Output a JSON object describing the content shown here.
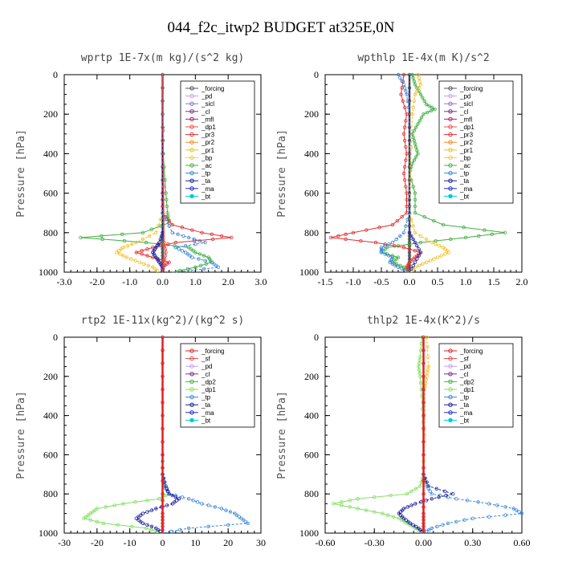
{
  "figure_title": "044_f2c_itwp2  BUDGET at325E,0N",
  "colors": {
    "forcing": "#555555",
    "pd": "#c8a0e0",
    "sicl": "#9a70c8",
    "cl": "#7a2a9a",
    "mfl": "#b0206a",
    "dp1": "#e85050",
    "pr3": "#e53030",
    "pr2": "#ee8a20",
    "pr1": "#f0c020",
    "bp": "#e8d040",
    "ac": "#40b040",
    "tp": "#3a86d8",
    "ta": "#1a1aa0",
    "ma": "#2030c0",
    "bt": "#00c8e0",
    "sf": "#e04848",
    "dp2": "#3cb83c",
    "dp1g": "#80e060",
    "forcing_r": "#e02020"
  },
  "chart_data": [
    {
      "type": "line",
      "title": "wprtp  1E-7x(m kg)/(s^2 kg)",
      "ylabel": "Pressure [hPa]",
      "xlim": [
        -3,
        3
      ],
      "xticks": [
        "-3.0",
        "-2.0",
        "-1.0",
        "0.0",
        "1.0",
        "2.0",
        "3.0"
      ],
      "ylim": [
        0,
        1000
      ],
      "yticks": [
        "0",
        "200",
        "400",
        "600",
        "800",
        "1000"
      ],
      "legend": [
        "_forcing",
        "_pd",
        "_sicl",
        "_cl",
        "_mfl",
        "_dp1",
        "_pr3",
        "_pr2",
        "_pr1",
        "_bp",
        "_ac",
        "_tp",
        "_ta",
        "_ma",
        "_bt"
      ],
      "series": [
        {
          "key": "forcing",
          "y": [
            0,
            200,
            400,
            600,
            700,
            800,
            850,
            900,
            950,
            1000
          ],
          "x": [
            0,
            0,
            0,
            0,
            0,
            0,
            0,
            0,
            0,
            0
          ]
        },
        {
          "key": "ac",
          "y": [
            0,
            200,
            400,
            600,
            700,
            750,
            800,
            825,
            850,
            875,
            900,
            925,
            950,
            975,
            1000
          ],
          "x": [
            0,
            0,
            0.02,
            0.1,
            0.15,
            0.2,
            -0.6,
            -2.5,
            -0.5,
            0.8,
            1.0,
            1.4,
            1.5,
            1.0,
            0.3
          ]
        },
        {
          "key": "pr3",
          "y": [
            0,
            600,
            700,
            760,
            800,
            825,
            850,
            875,
            900,
            925,
            950,
            975,
            1000
          ],
          "x": [
            0,
            0,
            0,
            0.3,
            1.2,
            2.1,
            0.4,
            -0.3,
            -0.8,
            -0.3,
            0.2,
            0.0,
            0.0
          ]
        },
        {
          "key": "pr1",
          "y": [
            0,
            700,
            800,
            850,
            875,
            900,
            925,
            950,
            975,
            1000
          ],
          "x": [
            0,
            0,
            -0.2,
            -0.8,
            -1.2,
            -1.4,
            -1.1,
            -0.7,
            -0.3,
            -0.1
          ]
        },
        {
          "key": "tp",
          "y": [
            0,
            700,
            800,
            825,
            850,
            875,
            900,
            925,
            950,
            975,
            1000
          ],
          "x": [
            0,
            0,
            0.3,
            0.8,
            1.3,
            0.4,
            0.7,
            0.9,
            1.5,
            1.7,
            0.4
          ]
        },
        {
          "key": "ta",
          "y": [
            0,
            800,
            850,
            875,
            900,
            925,
            950,
            975,
            1000
          ],
          "x": [
            0,
            0,
            -0.1,
            -0.2,
            -0.3,
            -0.2,
            -0.1,
            0,
            0
          ]
        },
        {
          "key": "dp1",
          "y": [
            0,
            850,
            900,
            950,
            1000
          ],
          "x": [
            0,
            0.05,
            0.1,
            0.05,
            0
          ]
        }
      ]
    },
    {
      "type": "line",
      "title": "wpthlp  1E-4x(m K)/s^2",
      "ylabel": "Pressure [hPa]",
      "xlim": [
        -1.5,
        2.0
      ],
      "xticks": [
        "-1.5",
        "-1.0",
        "-0.5",
        "0.0",
        "0.5",
        "1.0",
        "1.5",
        "2.0"
      ],
      "ylim": [
        0,
        1000
      ],
      "yticks": [
        "0",
        "200",
        "400",
        "600",
        "800",
        "1000"
      ],
      "legend": [
        "_forcing",
        "_pd",
        "_sicl",
        "_cl",
        "_mfl",
        "_dp1",
        "_pr3",
        "_pr2",
        "_pr1",
        "_bp",
        "_ac",
        "_tp",
        "_ta",
        "_ma",
        "_bt"
      ],
      "series": [
        {
          "key": "forcing",
          "y": [
            0,
            200,
            400,
            600,
            700,
            800,
            850,
            900,
            950,
            1000
          ],
          "x": [
            0,
            0,
            0,
            0,
            0,
            0,
            0,
            0,
            0,
            0
          ]
        },
        {
          "key": "ac",
          "y": [
            0,
            50,
            100,
            150,
            175,
            200,
            250,
            300,
            350,
            400,
            450,
            500,
            600,
            700,
            760,
            800,
            825,
            850,
            875,
            900,
            925,
            950,
            975,
            1000
          ],
          "x": [
            0.05,
            0.1,
            0.2,
            0.3,
            0.45,
            0.25,
            0.15,
            0.05,
            0.1,
            0.15,
            0.05,
            0.0,
            0.1,
            0.1,
            0.6,
            1.7,
            1.0,
            0.2,
            -0.4,
            -0.5,
            -0.2,
            -0.3,
            -0.1,
            0.0
          ]
        },
        {
          "key": "pr3",
          "y": [
            0,
            100,
            200,
            300,
            400,
            500,
            600,
            700,
            760,
            800,
            825,
            850,
            875,
            900,
            925,
            950,
            975,
            1000
          ],
          "x": [
            -0.1,
            -0.15,
            -0.05,
            -0.1,
            -0.05,
            -0.1,
            -0.05,
            -0.05,
            -0.3,
            -1.0,
            -1.4,
            -0.6,
            -0.1,
            0.2,
            0.1,
            0.0,
            -0.05,
            0.0
          ]
        },
        {
          "key": "pr1",
          "y": [
            0,
            50,
            100,
            200,
            700,
            800,
            850,
            875,
            900,
            925,
            950,
            975,
            1000
          ],
          "x": [
            0.15,
            0.2,
            0.1,
            0.05,
            0,
            0.1,
            0.4,
            0.6,
            0.7,
            0.5,
            0.3,
            0.1,
            0.0
          ]
        },
        {
          "key": "tp",
          "y": [
            0,
            50,
            100,
            200,
            700,
            800,
            850,
            875,
            900,
            925,
            950,
            975,
            1000
          ],
          "x": [
            -0.2,
            -0.1,
            -0.05,
            0,
            0,
            -0.1,
            -0.3,
            -0.5,
            -0.5,
            -0.3,
            -0.35,
            -0.2,
            0.0
          ]
        },
        {
          "key": "ta",
          "y": [
            0,
            800,
            850,
            900,
            950,
            1000
          ],
          "x": [
            0,
            0,
            0.1,
            0.2,
            0.1,
            0
          ]
        }
      ]
    },
    {
      "type": "line",
      "title": "rtp2  1E-11x(kg^2)/(kg^2 s)",
      "ylabel": "Pressure [hPa]",
      "xlim": [
        -30,
        30
      ],
      "xticks": [
        "-30",
        "-20",
        "-10",
        "0",
        "10",
        "20",
        "30"
      ],
      "ylim": [
        0,
        1000
      ],
      "yticks": [
        "0",
        "200",
        "400",
        "600",
        "800",
        "1000"
      ],
      "legend": [
        "_forcing",
        "_sf",
        "_pd",
        "_cl",
        "_dp2",
        "_dp1",
        "_tp",
        "_ta",
        "_ma",
        "_bt"
      ],
      "series": [
        {
          "key": "dp1g",
          "y": [
            0,
            600,
            700,
            760,
            800,
            825,
            850,
            875,
            900,
            925,
            950,
            975,
            1000
          ],
          "x": [
            0,
            0,
            0,
            0.5,
            2,
            -1,
            -12,
            -20,
            -22,
            -24,
            -18,
            -5,
            0
          ]
        },
        {
          "key": "tp",
          "y": [
            0,
            600,
            700,
            760,
            800,
            825,
            850,
            875,
            900,
            925,
            950,
            975,
            1000
          ],
          "x": [
            0,
            0,
            0,
            0.5,
            2,
            8,
            12,
            18,
            22,
            24,
            26,
            8,
            0
          ]
        },
        {
          "key": "ta",
          "y": [
            0,
            700,
            760,
            800,
            825,
            850,
            875,
            900,
            925,
            950,
            975,
            1000
          ],
          "x": [
            0,
            0,
            1,
            2,
            5,
            3,
            -2,
            -6,
            -8,
            -6,
            -2,
            0
          ]
        },
        {
          "key": "forcing_r",
          "y": [
            0,
            200,
            400,
            600,
            800,
            900,
            950,
            1000
          ],
          "x": [
            0,
            0,
            0,
            0,
            0,
            0,
            0,
            0
          ]
        }
      ]
    },
    {
      "type": "line",
      "title": "thlp2  1E-4x(K^2)/s",
      "ylabel": "Pressure [hPa]",
      "xlim": [
        -0.6,
        0.6
      ],
      "xticks": [
        "-0.60",
        "-0.30",
        "0.00",
        "0.30",
        "0.60"
      ],
      "ylim": [
        0,
        1000
      ],
      "yticks": [
        "0",
        "200",
        "400",
        "600",
        "800",
        "1000"
      ],
      "legend": [
        "_forcing",
        "_sf",
        "_pd",
        "_cl",
        "_dp2",
        "_dp1",
        "_tp",
        "_ta",
        "_ma",
        "_bt"
      ],
      "series": [
        {
          "key": "dp1g",
          "y": [
            0,
            100,
            150,
            200,
            300,
            500,
            700,
            760,
            800,
            825,
            850,
            875,
            900,
            925,
            950,
            975,
            1000
          ],
          "x": [
            -0.01,
            -0.02,
            -0.03,
            -0.02,
            -0.01,
            0,
            0,
            -0.02,
            -0.1,
            -0.4,
            -0.55,
            -0.4,
            -0.25,
            -0.15,
            -0.1,
            -0.05,
            0
          ]
        },
        {
          "key": "tp",
          "y": [
            0,
            700,
            760,
            800,
            825,
            850,
            875,
            900,
            925,
            950,
            975,
            1000
          ],
          "x": [
            0,
            0,
            0.02,
            0.05,
            0.2,
            0.4,
            0.55,
            0.6,
            0.3,
            0.15,
            0.05,
            0
          ]
        },
        {
          "key": "ta",
          "y": [
            0,
            700,
            760,
            800,
            825,
            850,
            875,
            900,
            925,
            950,
            975,
            1000
          ],
          "x": [
            0,
            0,
            0.03,
            0.18,
            0.05,
            -0.05,
            -0.12,
            -0.15,
            -0.12,
            -0.08,
            -0.03,
            0
          ]
        },
        {
          "key": "pr1",
          "y": [
            0,
            150,
            200,
            250,
            1000
          ],
          "x": [
            0.02,
            0.03,
            0.02,
            0.01,
            0
          ]
        },
        {
          "key": "forcing_r",
          "y": [
            0,
            200,
            400,
            600,
            800,
            900,
            950,
            1000
          ],
          "x": [
            0,
            0,
            0,
            0,
            0,
            0,
            0,
            0
          ]
        }
      ]
    }
  ]
}
